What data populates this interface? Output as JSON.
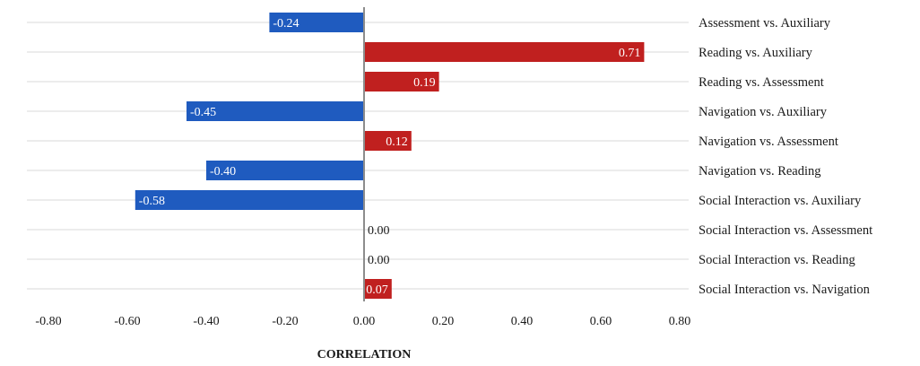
{
  "chart_data": {
    "type": "bar",
    "orientation": "horizontal",
    "categories": [
      "Assessment vs. Auxiliary",
      "Reading vs. Auxiliary",
      "Reading vs. Assessment",
      "Navigation vs. Auxiliary",
      "Navigation vs. Assessment",
      "Navigation vs. Reading",
      "Social Interaction vs. Auxiliary",
      "Social Interaction vs. Assessment",
      "Social Interaction vs. Reading",
      "Social Interaction vs. Navigation"
    ],
    "values": [
      -0.24,
      0.71,
      0.19,
      -0.45,
      0.12,
      -0.4,
      -0.58,
      0.0,
      0.0,
      0.07
    ],
    "value_labels": [
      "-0.24",
      "0.71",
      "0.19",
      "-0.45",
      "0.12",
      "-0.40",
      "-0.58",
      "0.00",
      "0.00",
      "0.07"
    ],
    "xlabel": "CORRELATION",
    "xlim": [
      -0.8,
      0.8
    ],
    "xticks": [
      -0.8,
      -0.6,
      -0.4,
      -0.2,
      0.0,
      0.2,
      0.4,
      0.6,
      0.8
    ],
    "xtick_labels": [
      "-0.80",
      "-0.60",
      "-0.40",
      "-0.20",
      "0.00",
      "0.20",
      "0.40",
      "0.60",
      "0.80"
    ],
    "grid": true,
    "legend": "none",
    "colors": {
      "positive": "#c0201f",
      "negative": "#1f5bbf",
      "label_on_bar": "#ffffff",
      "label_zero": "#1a1a1a"
    }
  }
}
